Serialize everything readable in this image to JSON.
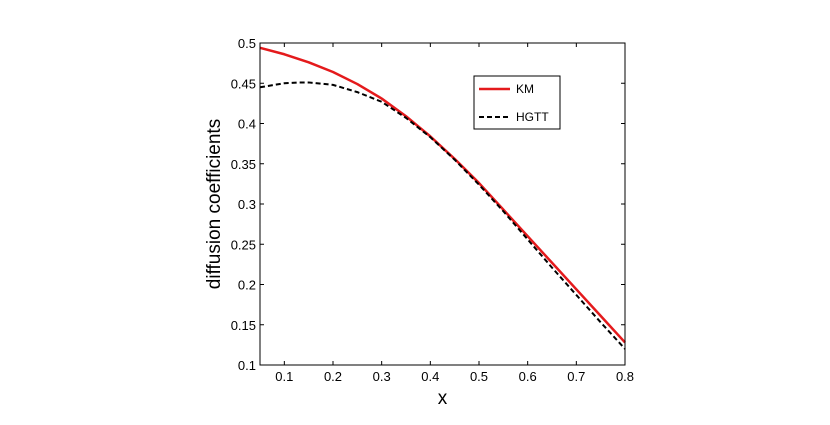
{
  "chart_data": {
    "type": "line",
    "title": "",
    "xlabel": "x",
    "ylabel": "diffusion coefficients",
    "xlim": [
      0.05,
      0.8
    ],
    "ylim": [
      0.1,
      0.5
    ],
    "xticks": [
      0.1,
      0.2,
      0.3,
      0.4,
      0.5,
      0.6,
      0.7,
      0.8
    ],
    "xtick_labels": [
      "0.1",
      "0.2",
      "0.3",
      "0.4",
      "0.5",
      "0.6",
      "0.7",
      "0.8"
    ],
    "yticks": [
      0.1,
      0.15,
      0.2,
      0.25,
      0.3,
      0.35,
      0.4,
      0.45,
      0.5
    ],
    "ytick_labels": [
      "0.1",
      "0.15",
      "0.2",
      "0.25",
      "0.3",
      "0.35",
      "0.4",
      "0.45",
      "0.5"
    ],
    "grid": false,
    "legend_position": "top-right",
    "series": [
      {
        "name": "KM",
        "color": "#e41a1c",
        "style": "solid",
        "x": [
          0.05,
          0.1,
          0.15,
          0.2,
          0.25,
          0.3,
          0.35,
          0.4,
          0.45,
          0.5,
          0.55,
          0.6,
          0.65,
          0.7,
          0.75,
          0.8
        ],
        "y": [
          0.494,
          0.486,
          0.476,
          0.464,
          0.449,
          0.431,
          0.409,
          0.384,
          0.356,
          0.326,
          0.293,
          0.26,
          0.227,
          0.194,
          0.161,
          0.128
        ]
      },
      {
        "name": "HGTT",
        "color": "#000000",
        "style": "dashed",
        "x": [
          0.05,
          0.1,
          0.13,
          0.15,
          0.2,
          0.25,
          0.3,
          0.35,
          0.4,
          0.45,
          0.5,
          0.55,
          0.6,
          0.65,
          0.7,
          0.75,
          0.8
        ],
        "y": [
          0.445,
          0.45,
          0.451,
          0.451,
          0.448,
          0.439,
          0.427,
          0.407,
          0.383,
          0.355,
          0.324,
          0.291,
          0.256,
          0.221,
          0.187,
          0.153,
          0.12
        ]
      }
    ]
  }
}
